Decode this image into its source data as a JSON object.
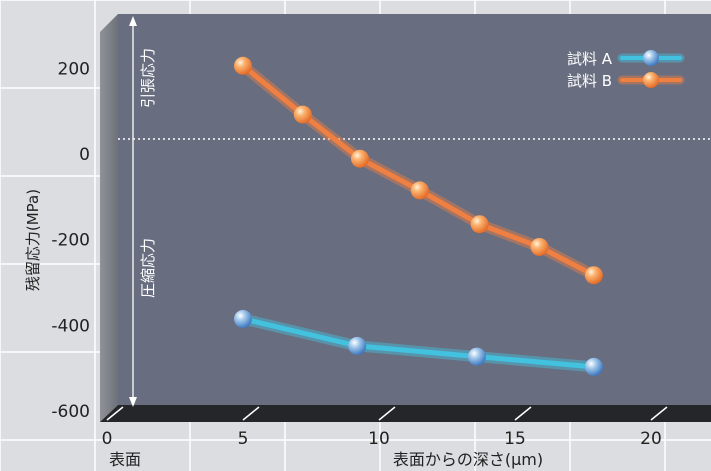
{
  "chart_data": {
    "type": "line",
    "ylabel": "残留応力(MPa)",
    "xlabel": "表面からの深さ(μm)",
    "x_origin_label": "表面",
    "xlim": [
      0,
      22
    ],
    "ylim": [
      -600,
      300
    ],
    "xticks": [
      0,
      5,
      10,
      15,
      20
    ],
    "yticks": [
      200,
      0,
      -200,
      -400,
      -600
    ],
    "region_labels": {
      "tension": "引張応力",
      "compression": "圧縮応力"
    },
    "legend_position": "top-right",
    "series": [
      {
        "name": "試料 A",
        "color": "#42c2de",
        "x": [
          5,
          9.2,
          13.6,
          17.9
        ],
        "y": [
          -385,
          -448,
          -473,
          -497
        ]
      },
      {
        "name": "試料 B",
        "color": "#f07f42",
        "x": [
          5,
          7.2,
          9.3,
          11.5,
          13.7,
          15.9,
          17.9
        ],
        "y": [
          206,
          92,
          -11,
          -85,
          -164,
          -217,
          -283
        ]
      }
    ]
  }
}
